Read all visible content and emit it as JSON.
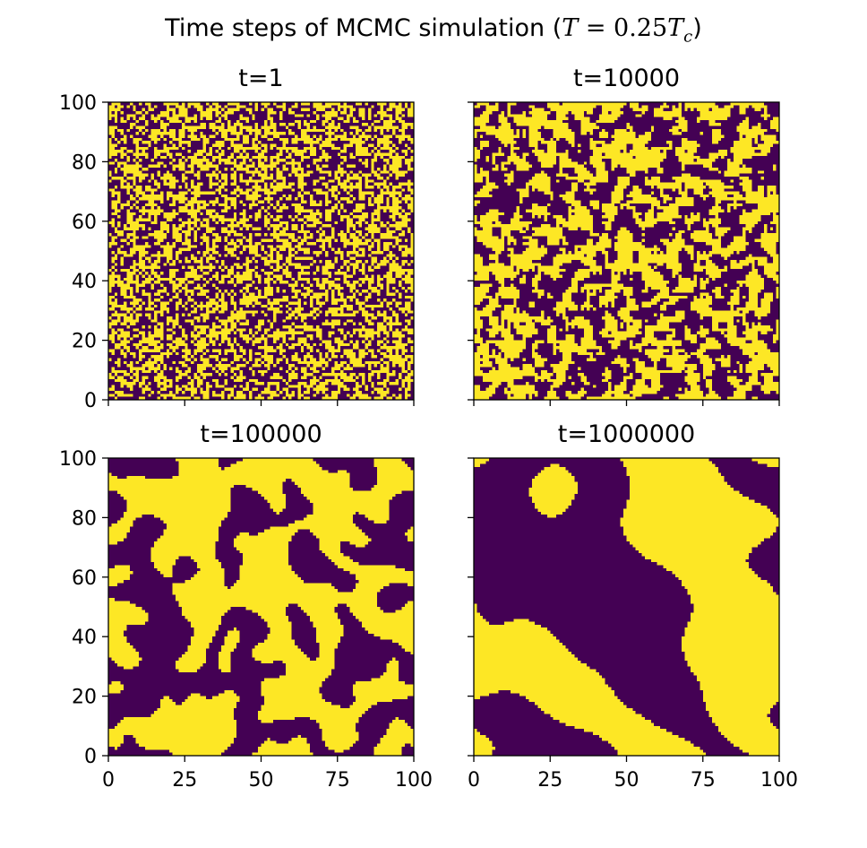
{
  "figure": {
    "title_text": "Time steps of MCMC simulation (",
    "title_math": {
      "T": "T",
      "eq": " = 0.25",
      "Tc": "T",
      "c": "c"
    },
    "title_close": ")"
  },
  "colors": {
    "low": "#440154",
    "high": "#fde725",
    "axis": "#000000"
  },
  "chart_data": [
    {
      "type": "heatmap",
      "title": "t=1",
      "step": 1,
      "grid": false,
      "xlim": [
        0,
        100
      ],
      "ylim": [
        0,
        100
      ],
      "xticks": [
        0,
        25,
        50,
        75,
        100
      ],
      "yticks": [
        0,
        20,
        40,
        60,
        80,
        100
      ],
      "xticklabels_shown": false,
      "yticklabels_shown": true,
      "lattice_size": 100,
      "colormap": "viridis",
      "values": [
        -1,
        1
      ],
      "pattern": "random uncorrelated spins"
    },
    {
      "type": "heatmap",
      "title": "t=10000",
      "step": 10000,
      "grid": false,
      "xlim": [
        0,
        100
      ],
      "ylim": [
        0,
        100
      ],
      "xticks": [
        0,
        25,
        50,
        75,
        100
      ],
      "yticks": [
        0,
        20,
        40,
        60,
        80,
        100
      ],
      "xticklabels_shown": false,
      "yticklabels_shown": false,
      "lattice_size": 100,
      "colormap": "viridis",
      "values": [
        -1,
        1
      ],
      "pattern": "small domains"
    },
    {
      "type": "heatmap",
      "title": "t=100000",
      "step": 100000,
      "grid": false,
      "xlim": [
        0,
        100
      ],
      "ylim": [
        0,
        100
      ],
      "xticks": [
        0,
        25,
        50,
        75,
        100
      ],
      "yticks": [
        0,
        20,
        40,
        60,
        80,
        100
      ],
      "xticklabels_shown": true,
      "yticklabels_shown": true,
      "lattice_size": 100,
      "colormap": "viridis",
      "values": [
        -1,
        1
      ],
      "pattern": "medium coarsened domains"
    },
    {
      "type": "heatmap",
      "title": "t=1000000",
      "step": 1000000,
      "grid": false,
      "xlim": [
        0,
        100
      ],
      "ylim": [
        0,
        100
      ],
      "xticks": [
        0,
        25,
        50,
        75,
        100
      ],
      "yticks": [
        0,
        20,
        40,
        60,
        80,
        100
      ],
      "xticklabels_shown": true,
      "yticklabels_shown": false,
      "lattice_size": 100,
      "colormap": "viridis",
      "values": [
        -1,
        1
      ],
      "pattern": "large domains"
    }
  ]
}
